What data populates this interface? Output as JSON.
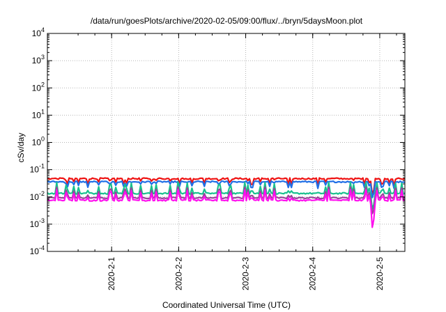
{
  "chart_data": {
    "type": "line",
    "title": "/data/run/goesPlots/archive/2020-02-05/09:00/flux/../bryn/5daysMoon.plot",
    "xlabel": "Coordinated Universal Time (UTC)",
    "ylabel": "cSv/day",
    "yscale": "log",
    "ylim": [
      0.0001,
      10000
    ],
    "xlim": [
      "2020-01-31T01:00",
      "2020-02-05T09:00"
    ],
    "grid": true,
    "x_ticks": [
      {
        "value": "2020-02-01T00:00",
        "label": "2020-2-1"
      },
      {
        "value": "2020-02-02T00:00",
        "label": "2020-2-2"
      },
      {
        "value": "2020-02-03T00:00",
        "label": "2020-2-3"
      },
      {
        "value": "2020-02-04T00:00",
        "label": "2020-2-4"
      },
      {
        "value": "2020-02-05T00:00",
        "label": "2020-2-5"
      }
    ],
    "y_ticks": [
      {
        "value": 0.0001,
        "base": "10",
        "exp": "-4"
      },
      {
        "value": 0.001,
        "base": "10",
        "exp": "-3"
      },
      {
        "value": 0.01,
        "base": "10",
        "exp": "-2"
      },
      {
        "value": 0.1,
        "base": "10",
        "exp": "-1"
      },
      {
        "value": 1,
        "base": "10",
        "exp": "0"
      },
      {
        "value": 10,
        "base": "10",
        "exp": "1"
      },
      {
        "value": 100,
        "base": "10",
        "exp": "2"
      },
      {
        "value": 1000,
        "base": "10",
        "exp": "3"
      },
      {
        "value": 10000,
        "base": "10",
        "exp": "4"
      }
    ],
    "series": [
      {
        "color": "#ee1111",
        "baseline": 0.047,
        "peak": 0.075
      },
      {
        "color": "#1f6fe6",
        "baseline": 0.036,
        "peak": 0.06
      },
      {
        "color": "#19c08e",
        "baseline": 0.0135,
        "peak": 0.03
      },
      {
        "color": "#994499",
        "baseline": 0.0092,
        "peak": 0.02
      },
      {
        "color": "#ff11ee",
        "baseline": 0.0075,
        "peak": 0.016
      }
    ],
    "events": [
      {
        "time": "2020-02-04T21:30",
        "min_value": 0.0004,
        "series_color": "#ff11ee"
      }
    ]
  }
}
